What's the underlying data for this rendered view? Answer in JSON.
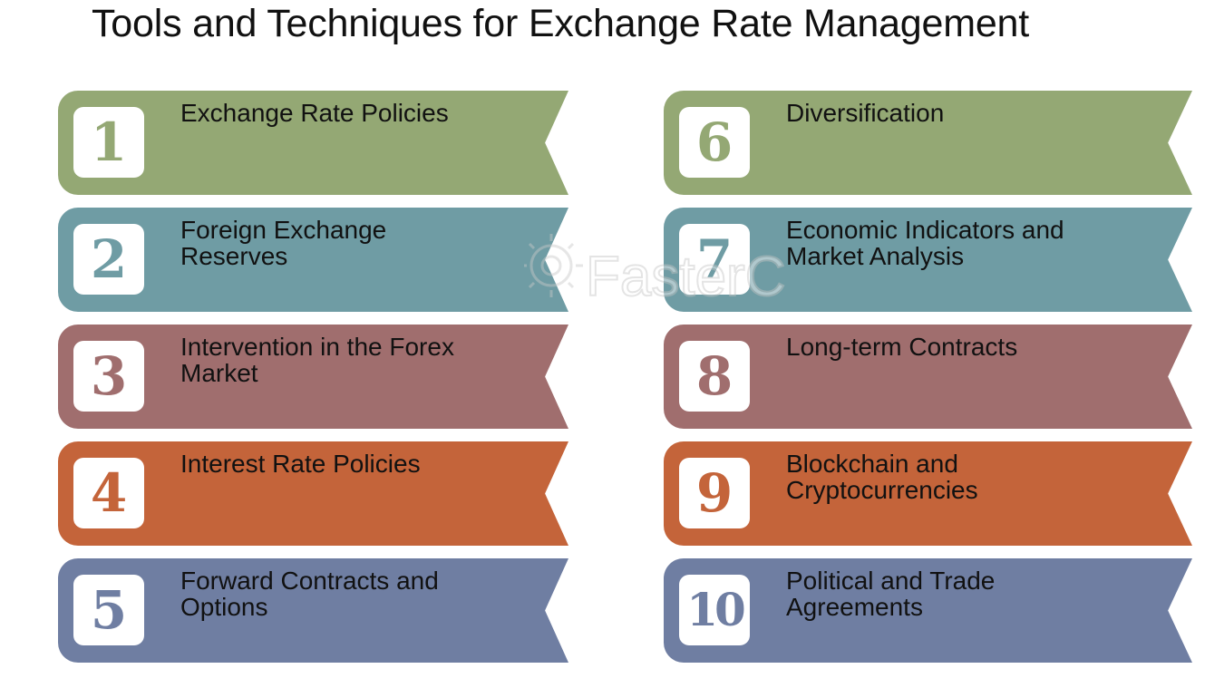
{
  "title": "Tools and Techniques for Exchange Rate Management",
  "watermark_text": "FasterCapital",
  "colors": {
    "green": "#94a874",
    "teal": "#6f9ca4",
    "mauve": "#a06e6e",
    "orange": "#c4643a",
    "slate": "#6f7ea2"
  },
  "items": [
    {
      "number": "1",
      "label": "Exchange Rate Policies",
      "color": "green"
    },
    {
      "number": "2",
      "label": "Foreign Exchange Reserves",
      "color": "teal"
    },
    {
      "number": "3",
      "label": "Intervention in the Forex Market",
      "color": "mauve"
    },
    {
      "number": "4",
      "label": "Interest Rate Policies",
      "color": "orange"
    },
    {
      "number": "5",
      "label": "Forward Contracts and Options",
      "color": "slate"
    },
    {
      "number": "6",
      "label": "Diversification",
      "color": "green"
    },
    {
      "number": "7",
      "label": "Economic Indicators and Market Analysis",
      "color": "teal"
    },
    {
      "number": "8",
      "label": "Long-term Contracts",
      "color": "mauve"
    },
    {
      "number": "9",
      "label": "Blockchain and Cryptocurrencies",
      "color": "orange"
    },
    {
      "number": "10",
      "label": "Political and Trade Agreements",
      "color": "slate"
    }
  ]
}
